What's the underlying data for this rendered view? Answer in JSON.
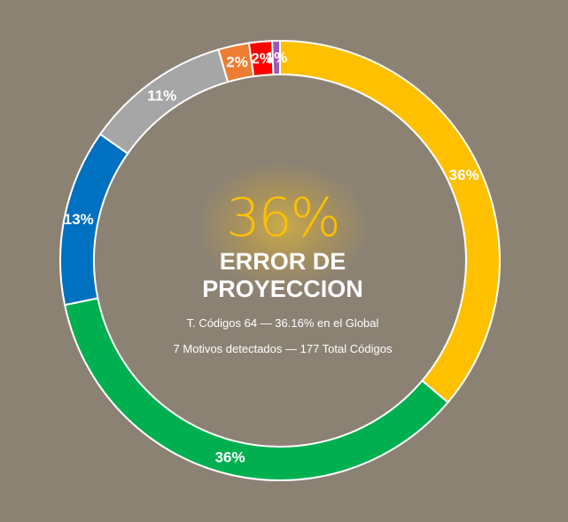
{
  "chart_data": {
    "type": "pie",
    "donut": true,
    "slices": [
      {
        "label": "36%",
        "value": 36.16,
        "color": "#ffc000"
      },
      {
        "label": "36%",
        "value": 35.6,
        "color": "#00b050"
      },
      {
        "label": "13%",
        "value": 12.99,
        "color": "#0070c0"
      },
      {
        "label": "11%",
        "value": 10.73,
        "color": "#a6a6a6"
      },
      {
        "label": "2%",
        "value": 2.26,
        "color": "#ed7d31"
      },
      {
        "label": "2%",
        "value": 1.69,
        "color": "#ff0000"
      },
      {
        "label": "1%",
        "value": 0.57,
        "color": "#9b59b6"
      }
    ]
  },
  "center": {
    "percent": "36%",
    "line1": "ERROR DE",
    "line2": "PROYECCION",
    "detail1": "T. Códigos 64 — 36.16% en el Global",
    "detail2": "7 Motivos detectados — 177 Total Códigos"
  },
  "colors": {
    "background": "#8b8274",
    "accent": "#ffc000"
  }
}
